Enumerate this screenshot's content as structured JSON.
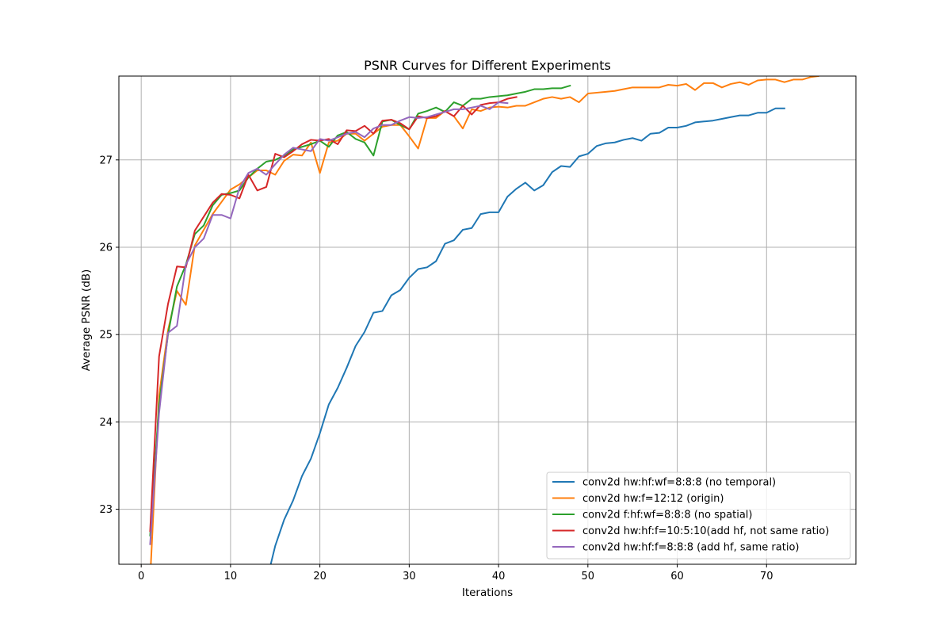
{
  "chart_data": {
    "type": "line",
    "title": "PSNR Curves for Different Experiments",
    "xlabel": "Iterations",
    "ylabel": "Average PSNR (dB)",
    "xlim": [
      -2.5,
      80
    ],
    "ylim": [
      22.37,
      27.96
    ],
    "xticks": [
      0,
      10,
      20,
      30,
      40,
      50,
      60,
      70
    ],
    "yticks": [
      23,
      24,
      25,
      26,
      27
    ],
    "grid": true,
    "legend_position": "lower-right",
    "series": [
      {
        "name": "conv2d hw:hf:wf=8:8:8 (no temporal)",
        "color": "#1f77b4",
        "x": [
          14.5,
          15,
          16,
          17,
          18,
          19,
          20,
          21,
          22,
          23,
          24,
          25,
          26,
          27,
          28,
          29,
          30,
          31,
          32,
          33,
          34,
          35,
          36,
          37,
          38,
          39,
          40,
          41,
          42,
          43,
          44,
          45,
          46,
          47,
          48,
          49,
          50,
          51,
          52,
          53,
          54,
          55,
          56,
          57,
          58,
          59,
          60,
          61,
          62,
          63,
          64,
          65,
          66,
          67,
          68,
          69,
          70,
          71,
          72
        ],
        "values": [
          22.37,
          22.58,
          22.88,
          23.1,
          23.38,
          23.58,
          23.87,
          24.2,
          24.39,
          24.62,
          24.87,
          25.03,
          25.25,
          25.27,
          25.45,
          25.51,
          25.65,
          25.75,
          25.77,
          25.84,
          26.04,
          26.08,
          26.2,
          26.22,
          26.38,
          26.4,
          26.4,
          26.58,
          26.67,
          26.74,
          26.65,
          26.71,
          26.86,
          26.93,
          26.92,
          27.04,
          27.07,
          27.16,
          27.19,
          27.2,
          27.23,
          27.25,
          27.22,
          27.3,
          27.31,
          27.37,
          27.37,
          27.39,
          27.43,
          27.44,
          27.45,
          27.47,
          27.49,
          27.51,
          27.51,
          27.54,
          27.54,
          27.59,
          27.59
        ]
      },
      {
        "name": "conv2d hw:f=12:12 (origin)",
        "color": "#ff7f0e",
        "x": [
          1.08,
          2,
          3,
          4,
          5,
          6,
          7,
          8,
          9,
          10,
          11,
          12,
          13,
          14,
          15,
          16,
          17,
          18,
          19,
          20,
          21,
          22,
          23,
          24,
          25,
          26,
          27,
          28,
          29,
          30,
          31,
          32,
          33,
          34,
          35,
          36,
          37,
          38,
          39,
          40,
          41,
          42,
          43,
          44,
          45,
          46,
          47,
          48,
          49,
          50,
          51,
          52,
          53,
          54,
          55,
          56,
          57,
          58,
          59,
          60,
          61,
          62,
          63,
          64,
          65,
          66,
          67,
          68,
          69,
          70,
          71,
          72,
          73,
          74,
          75,
          75.8
        ],
        "values": [
          22.37,
          24.3,
          25.05,
          25.5,
          25.34,
          26.02,
          26.2,
          26.38,
          26.52,
          26.66,
          26.72,
          26.8,
          26.88,
          26.88,
          26.83,
          26.99,
          27.06,
          27.05,
          27.2,
          26.85,
          27.2,
          27.22,
          27.3,
          27.3,
          27.22,
          27.3,
          27.38,
          27.4,
          27.4,
          27.27,
          27.13,
          27.48,
          27.48,
          27.56,
          27.5,
          27.36,
          27.58,
          27.56,
          27.6,
          27.61,
          27.6,
          27.62,
          27.62,
          27.66,
          27.7,
          27.72,
          27.7,
          27.72,
          27.66,
          27.76,
          27.77,
          27.78,
          27.79,
          27.81,
          27.83,
          27.83,
          27.83,
          27.83,
          27.86,
          27.85,
          27.87,
          27.8,
          27.88,
          27.88,
          27.83,
          27.87,
          27.89,
          27.86,
          27.91,
          27.92,
          27.92,
          27.89,
          27.92,
          27.92,
          27.95,
          27.96
        ]
      },
      {
        "name": "conv2d f:hf:wf=8:8:8 (no spatial)",
        "color": "#2ca02c",
        "x": [
          1,
          2,
          3,
          4,
          5,
          6,
          7,
          8,
          9,
          10,
          11,
          12,
          13,
          14,
          15,
          16,
          17,
          18,
          19,
          20,
          21,
          22,
          23,
          24,
          25,
          26,
          27,
          28,
          29,
          30,
          31,
          32,
          33,
          34,
          35,
          36,
          37,
          38,
          39,
          40,
          41,
          42,
          43,
          44,
          45,
          46,
          47,
          48
        ],
        "values": [
          22.7,
          24.2,
          25.0,
          25.55,
          25.8,
          26.15,
          26.25,
          26.48,
          26.6,
          26.62,
          26.65,
          26.8,
          26.9,
          26.98,
          27.0,
          27.05,
          27.12,
          27.15,
          27.18,
          27.22,
          27.15,
          27.28,
          27.32,
          27.24,
          27.2,
          27.05,
          27.44,
          27.46,
          27.4,
          27.35,
          27.53,
          27.56,
          27.6,
          27.55,
          27.66,
          27.62,
          27.7,
          27.7,
          27.72,
          27.73,
          27.74,
          27.76,
          27.78,
          27.81,
          27.81,
          27.82,
          27.82,
          27.85
        ]
      },
      {
        "name": "conv2d hw:hf:f=10:5:10(add hf, not same ratio)",
        "color": "#d62728",
        "x": [
          1,
          2,
          3,
          4,
          5,
          6,
          7,
          8,
          9,
          10,
          11,
          12,
          13,
          14,
          15,
          16,
          17,
          18,
          19,
          20,
          21,
          22,
          23,
          24,
          25,
          26,
          27,
          28,
          29,
          30,
          31,
          32,
          33,
          34,
          35,
          36,
          37,
          38,
          39,
          40,
          41,
          42
        ],
        "values": [
          22.75,
          24.75,
          25.35,
          25.78,
          25.77,
          26.19,
          26.35,
          26.51,
          26.61,
          26.6,
          26.56,
          26.83,
          26.65,
          26.69,
          27.07,
          27.03,
          27.1,
          27.18,
          27.23,
          27.22,
          27.24,
          27.18,
          27.34,
          27.33,
          27.39,
          27.3,
          27.45,
          27.46,
          27.42,
          27.35,
          27.5,
          27.48,
          27.5,
          27.56,
          27.5,
          27.62,
          27.52,
          27.63,
          27.65,
          27.66,
          27.7,
          27.72
        ]
      },
      {
        "name": "conv2d hw:hf:f=8:8:8 (add hf, same ratio)",
        "color": "#9467bd",
        "x": [
          1,
          2,
          3,
          4,
          5,
          6,
          7,
          8,
          9,
          10,
          11,
          12,
          13,
          14,
          15,
          16,
          17,
          18,
          19,
          20,
          21,
          22,
          23,
          24,
          25,
          26,
          27,
          28,
          29,
          30,
          31,
          32,
          33,
          34,
          35,
          36,
          37,
          38,
          39,
          40,
          41
        ],
        "values": [
          22.6,
          24.1,
          25.02,
          25.1,
          25.8,
          26.0,
          26.1,
          26.37,
          26.37,
          26.33,
          26.68,
          26.85,
          26.9,
          26.83,
          26.95,
          27.06,
          27.14,
          27.12,
          27.1,
          27.24,
          27.22,
          27.26,
          27.3,
          27.32,
          27.26,
          27.36,
          27.4,
          27.4,
          27.45,
          27.49,
          27.48,
          27.49,
          27.52,
          27.55,
          27.58,
          27.58,
          27.6,
          27.62,
          27.58,
          27.66,
          27.65
        ]
      }
    ]
  }
}
